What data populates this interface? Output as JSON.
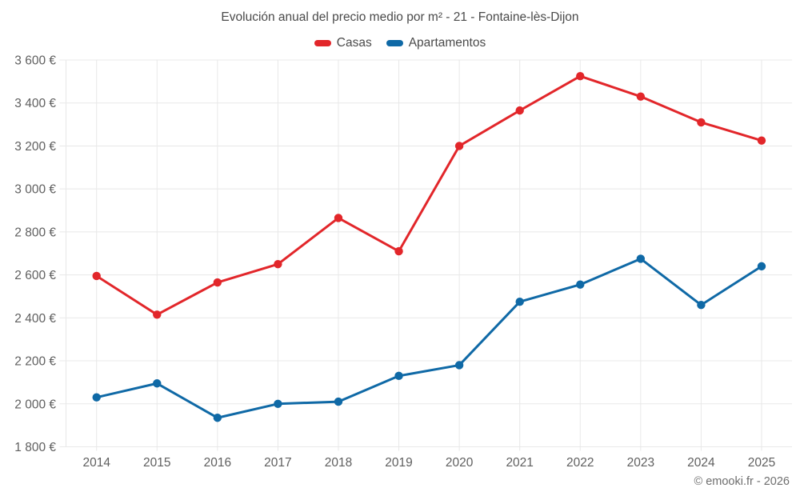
{
  "chart": {
    "title": "Evolución anual del precio medio por m² - 21 - Fontaine-lès-Dijon",
    "footer": "© emooki.fr - 2026"
  },
  "chart_data": {
    "type": "line",
    "title": "Evolución anual del precio medio por m² - 21 - Fontaine-lès-Dijon",
    "categories": [
      "2014",
      "2015",
      "2016",
      "2017",
      "2018",
      "2019",
      "2020",
      "2021",
      "2022",
      "2023",
      "2024",
      "2025"
    ],
    "series": [
      {
        "name": "Casas",
        "color": "#e2262a",
        "values": [
          2595,
          2415,
          2565,
          2650,
          2865,
          2710,
          3200,
          3365,
          3525,
          3430,
          3310,
          3225
        ]
      },
      {
        "name": "Apartamentos",
        "color": "#0f69a6",
        "values": [
          2030,
          2095,
          1935,
          2000,
          2010,
          2130,
          2180,
          2475,
          2555,
          2675,
          2460,
          2640
        ]
      }
    ],
    "xlabel": "",
    "ylabel": "",
    "ylim": [
      1800,
      3600
    ],
    "y_tick_values": [
      1800,
      2000,
      2200,
      2400,
      2600,
      2800,
      3000,
      3200,
      3400,
      3600
    ],
    "y_tick_labels": [
      "1 800 €",
      "2 000 €",
      "2 200 €",
      "2 400 €",
      "2 600 €",
      "2 800 €",
      "3 000 €",
      "3 200 €",
      "3 400 €",
      "3 600 €"
    ],
    "grid": true,
    "legend_position": "top",
    "grid_color": "#e8e8e8",
    "axis_text_color": "#5f5f5f"
  }
}
